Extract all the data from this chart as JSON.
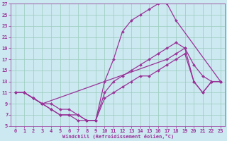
{
  "xlabel": "Windchill (Refroidissement éolien,°C)",
  "bg_color": "#cce8f0",
  "grid_color": "#99ccbb",
  "line_color": "#993399",
  "xlim": [
    -0.5,
    23.5
  ],
  "ylim": [
    5,
    27
  ],
  "xticks": [
    0,
    1,
    2,
    3,
    4,
    5,
    6,
    7,
    8,
    9,
    10,
    11,
    12,
    13,
    14,
    15,
    16,
    17,
    18,
    19,
    20,
    21,
    22,
    23
  ],
  "yticks": [
    5,
    7,
    9,
    11,
    13,
    15,
    17,
    19,
    21,
    23,
    25,
    27
  ],
  "curves": [
    {
      "x": [
        0,
        1,
        2,
        3,
        4,
        5,
        6,
        7,
        8,
        9,
        10,
        11,
        12,
        13,
        14,
        15,
        16,
        17,
        18,
        23
      ],
      "y": [
        11,
        11,
        10,
        9,
        8,
        7,
        7,
        6,
        6,
        6,
        13,
        17,
        22,
        24,
        25,
        26,
        27,
        27,
        24,
        13
      ]
    },
    {
      "x": [
        0,
        1,
        2,
        3,
        4,
        5,
        6,
        7,
        8,
        9,
        10,
        11,
        12,
        13,
        14,
        15,
        16,
        17,
        18,
        19,
        20,
        21,
        22,
        23
      ],
      "y": [
        11,
        11,
        10,
        9,
        8,
        7,
        7,
        7,
        6,
        6,
        11,
        13,
        14,
        15,
        16,
        17,
        18,
        19,
        20,
        19,
        16,
        14,
        13,
        13
      ]
    },
    {
      "x": [
        0,
        1,
        2,
        3,
        17,
        18,
        19,
        20,
        21,
        22,
        23
      ],
      "y": [
        11,
        11,
        10,
        9,
        17,
        18,
        19,
        13,
        11,
        13,
        13
      ]
    },
    {
      "x": [
        0,
        1,
        2,
        3,
        4,
        5,
        6,
        7,
        8,
        9,
        10,
        11,
        12,
        13,
        14,
        15,
        16,
        17,
        18,
        19,
        20,
        21,
        22,
        23
      ],
      "y": [
        11,
        11,
        10,
        9,
        9,
        8,
        8,
        7,
        6,
        6,
        10,
        11,
        12,
        13,
        14,
        14,
        15,
        16,
        17,
        18,
        13,
        11,
        13,
        13
      ]
    }
  ],
  "xlabel_fontsize": 5,
  "tick_fontsize": 5,
  "linewidth": 0.9,
  "markersize": 2.0
}
